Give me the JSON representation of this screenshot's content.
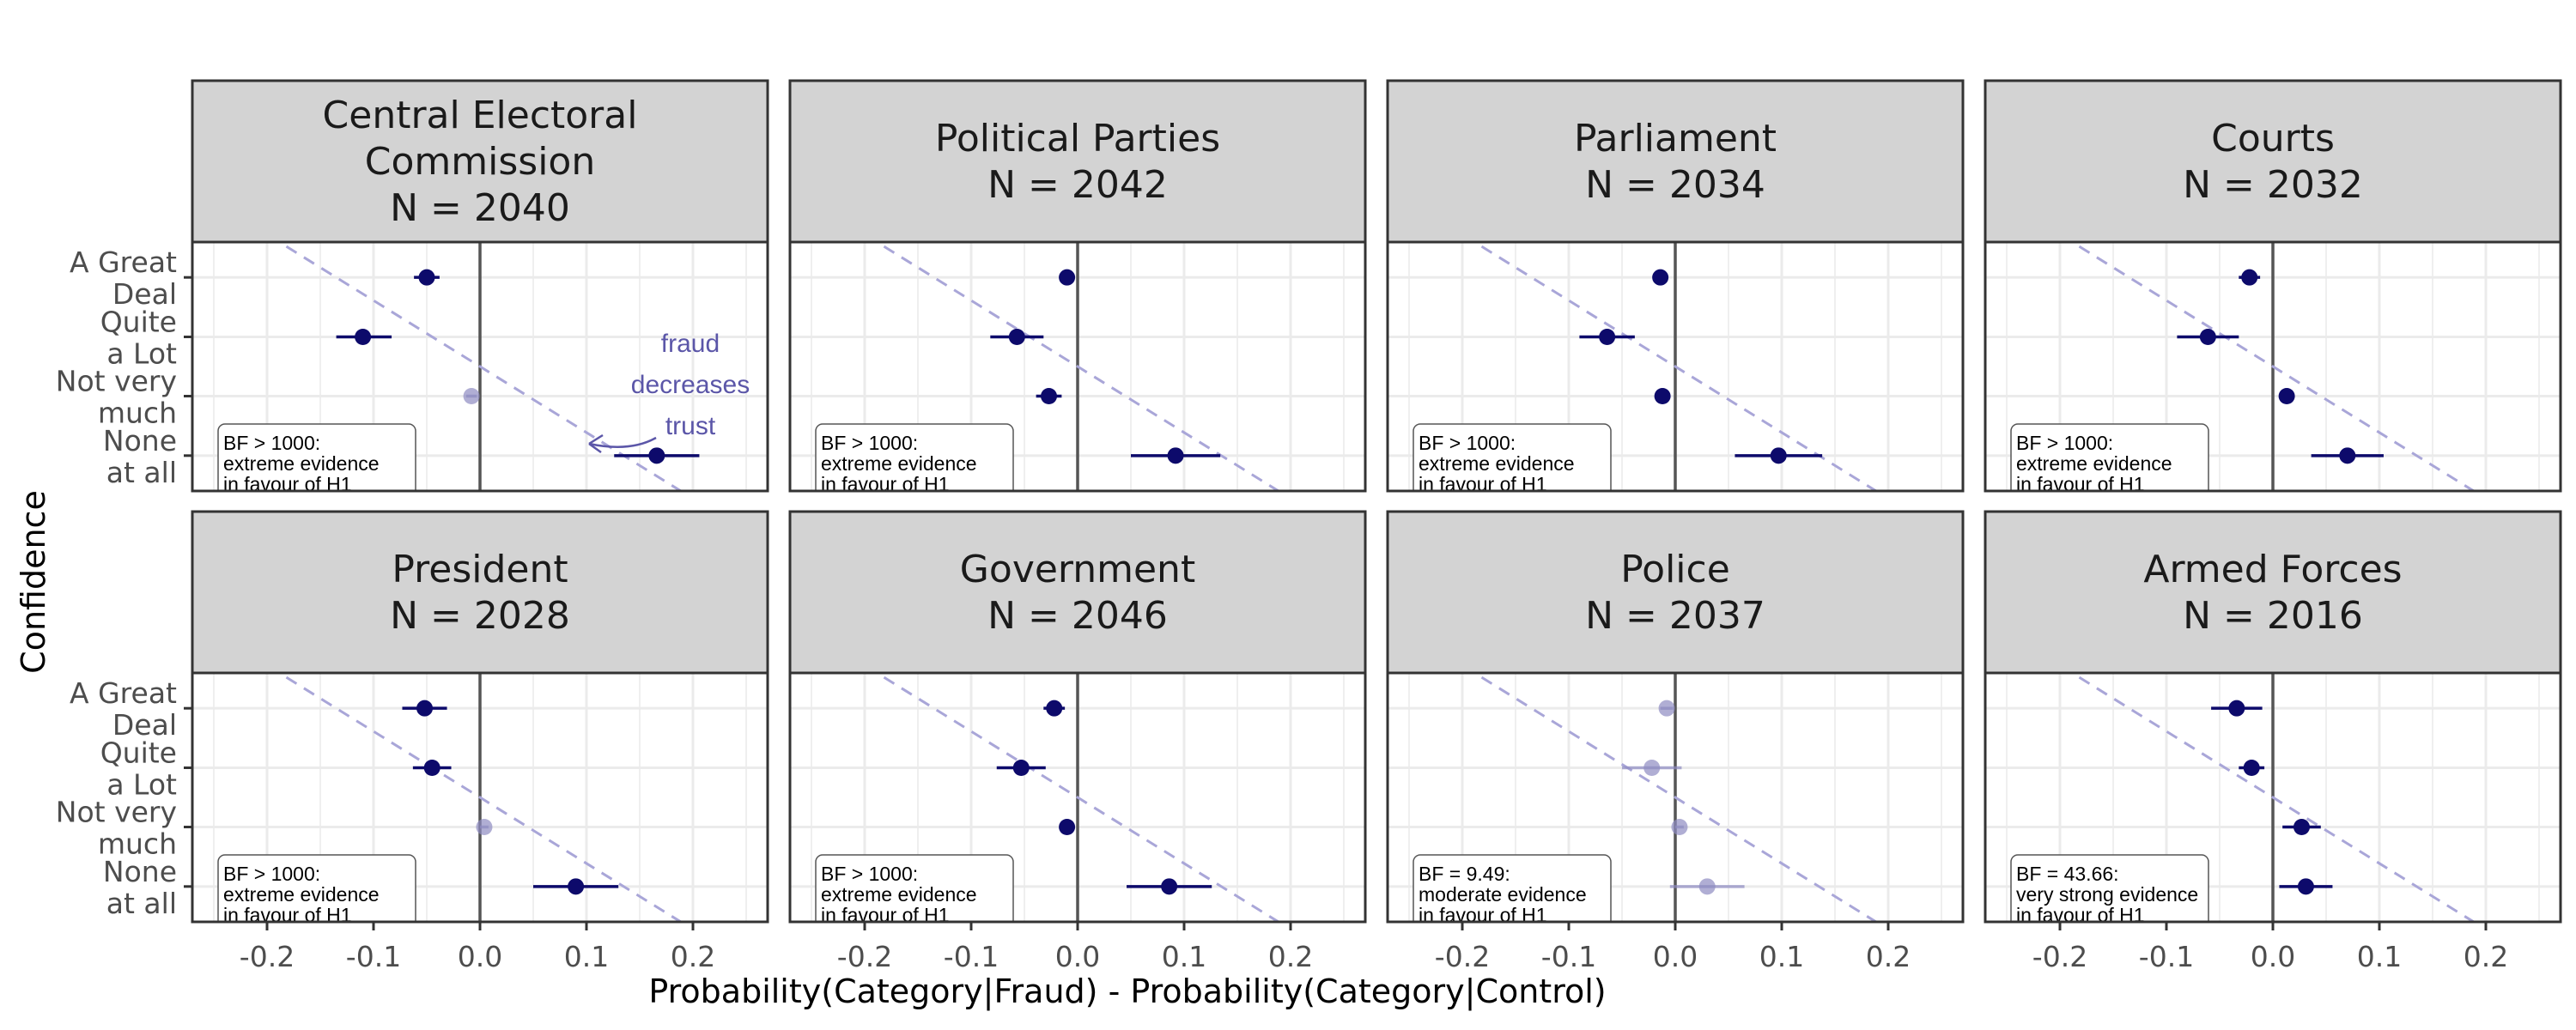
{
  "chart_data": {
    "type": "scatter",
    "description_layout": "faceted dot-and-interval plot, 2 rows x 4 columns",
    "xlabel": "Probability(Category|Fraud) - Probability(Category|Control)",
    "ylabel": "Confidence",
    "xlim": [
      -0.27,
      0.27
    ],
    "x_ticks": [
      -0.2,
      -0.1,
      0.0,
      0.1,
      0.2
    ],
    "x_tick_labels": [
      "-0.2",
      "-0.1",
      "0.0",
      "0.1",
      "0.2"
    ],
    "categories": [
      "A Great Deal",
      "Quite a Lot",
      "Not very much",
      "None at all"
    ],
    "category_labels": [
      [
        "A Great",
        "Deal"
      ],
      [
        "Quite",
        "a Lot"
      ],
      [
        "Not very",
        "much"
      ],
      [
        "None",
        "at all"
      ]
    ],
    "reference_line": {
      "x": 0.0
    },
    "diagonal_guide": {
      "style": "dashed",
      "from": [
        -0.135,
        "A Great Deal"
      ],
      "to": [
        0.135,
        "None at all"
      ],
      "color": "#a9a6d8"
    },
    "grid": true,
    "colors": {
      "strong": "#0d0a6b",
      "faint": "#8e8bc2",
      "strip_bg": "#d3d3d3",
      "panel_border": "#333333",
      "grid": "#ebebeb",
      "zero_line": "#555555",
      "annotation": "#5b56a8"
    },
    "annotation": {
      "panel": 0,
      "lines": [
        "fraud",
        "decreases",
        "trust"
      ]
    },
    "panels": [
      {
        "title_lines": [
          "Central Electoral",
          "Commission"
        ],
        "n_label": "N = 2040",
        "bf_lines": [
          "BF > 1000:",
          "extreme evidence",
          "in favour of H1"
        ],
        "points": [
          {
            "x": -0.05,
            "lo": -0.062,
            "hi": -0.038,
            "faint": false
          },
          {
            "x": -0.11,
            "lo": -0.135,
            "hi": -0.083,
            "faint": false
          },
          {
            "x": -0.008,
            "lo": -0.013,
            "hi": -0.003,
            "faint": true
          },
          {
            "x": 0.166,
            "lo": 0.126,
            "hi": 0.206,
            "faint": false
          }
        ]
      },
      {
        "title_lines": [
          "Political Parties"
        ],
        "n_label": "N = 2042",
        "bf_lines": [
          "BF > 1000:",
          "extreme evidence",
          "in favour of H1"
        ],
        "points": [
          {
            "x": -0.01,
            "lo": -0.015,
            "hi": -0.005,
            "faint": false
          },
          {
            "x": -0.057,
            "lo": -0.082,
            "hi": -0.032,
            "faint": false
          },
          {
            "x": -0.027,
            "lo": -0.039,
            "hi": -0.015,
            "faint": false
          },
          {
            "x": 0.092,
            "lo": 0.05,
            "hi": 0.134,
            "faint": false
          }
        ]
      },
      {
        "title_lines": [
          "Parliament"
        ],
        "n_label": "N = 2034",
        "bf_lines": [
          "BF > 1000:",
          "extreme evidence",
          "in favour of H1"
        ],
        "points": [
          {
            "x": -0.014,
            "lo": -0.02,
            "hi": -0.008,
            "faint": false
          },
          {
            "x": -0.064,
            "lo": -0.09,
            "hi": -0.038,
            "faint": false
          },
          {
            "x": -0.012,
            "lo": -0.019,
            "hi": -0.005,
            "faint": false
          },
          {
            "x": 0.097,
            "lo": 0.056,
            "hi": 0.138,
            "faint": false
          }
        ]
      },
      {
        "title_lines": [
          "Courts"
        ],
        "n_label": "N = 2032",
        "bf_lines": [
          "BF > 1000:",
          "extreme evidence",
          "in favour of H1"
        ],
        "points": [
          {
            "x": -0.022,
            "lo": -0.032,
            "hi": -0.012,
            "faint": false
          },
          {
            "x": -0.061,
            "lo": -0.09,
            "hi": -0.032,
            "faint": false
          },
          {
            "x": 0.013,
            "lo": 0.008,
            "hi": 0.018,
            "faint": false
          },
          {
            "x": 0.07,
            "lo": 0.036,
            "hi": 0.104,
            "faint": false
          }
        ]
      },
      {
        "title_lines": [
          "President"
        ],
        "n_label": "N = 2028",
        "bf_lines": [
          "BF > 1000:",
          "extreme evidence",
          "in favour of H1"
        ],
        "points": [
          {
            "x": -0.052,
            "lo": -0.073,
            "hi": -0.031,
            "faint": false
          },
          {
            "x": -0.045,
            "lo": -0.063,
            "hi": -0.027,
            "faint": false
          },
          {
            "x": 0.004,
            "lo": 0.0,
            "hi": 0.008,
            "faint": true
          },
          {
            "x": 0.09,
            "lo": 0.05,
            "hi": 0.13,
            "faint": false
          }
        ]
      },
      {
        "title_lines": [
          "Government"
        ],
        "n_label": "N = 2046",
        "bf_lines": [
          "BF > 1000:",
          "extreme evidence",
          "in favour of H1"
        ],
        "points": [
          {
            "x": -0.022,
            "lo": -0.032,
            "hi": -0.012,
            "faint": false
          },
          {
            "x": -0.053,
            "lo": -0.076,
            "hi": -0.03,
            "faint": false
          },
          {
            "x": -0.01,
            "lo": -0.015,
            "hi": -0.005,
            "faint": false
          },
          {
            "x": 0.086,
            "lo": 0.046,
            "hi": 0.126,
            "faint": false
          }
        ]
      },
      {
        "title_lines": [
          "Police"
        ],
        "n_label": "N = 2037",
        "bf_lines": [
          "BF = 9.49:",
          "moderate evidence",
          "in favour of H1"
        ],
        "points": [
          {
            "x": -0.008,
            "lo": -0.014,
            "hi": -0.002,
            "faint": true
          },
          {
            "x": -0.022,
            "lo": -0.05,
            "hi": 0.006,
            "faint": true
          },
          {
            "x": 0.004,
            "lo": 0.0,
            "hi": 0.008,
            "faint": true
          },
          {
            "x": 0.03,
            "lo": -0.005,
            "hi": 0.065,
            "faint": true
          }
        ]
      },
      {
        "title_lines": [
          "Armed Forces"
        ],
        "n_label": "N = 2016",
        "bf_lines": [
          "BF = 43.66:",
          "very strong evidence",
          "in favour of H1"
        ],
        "points": [
          {
            "x": -0.034,
            "lo": -0.058,
            "hi": -0.01,
            "faint": false
          },
          {
            "x": -0.02,
            "lo": -0.032,
            "hi": -0.008,
            "faint": false
          },
          {
            "x": 0.027,
            "lo": 0.009,
            "hi": 0.045,
            "faint": false
          },
          {
            "x": 0.031,
            "lo": 0.006,
            "hi": 0.056,
            "faint": false
          }
        ]
      }
    ]
  }
}
